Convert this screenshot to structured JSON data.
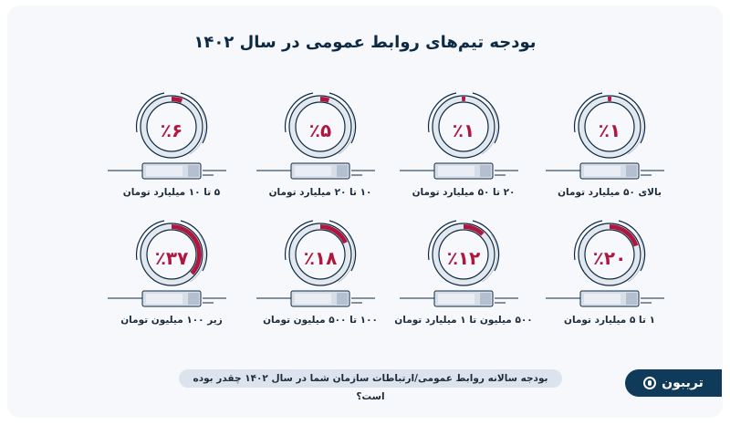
{
  "title": "بودجه تیم‌های روابط عمومی در سال ۱۴۰۲",
  "question": "بودجه سالانه روابط عمومی/ارتباطات سازمان شما در سال ۱۴۰۲ چقدر بوده است؟",
  "logo": {
    "text": "تریبون"
  },
  "colors": {
    "accent": "#b0173f",
    "navy": "#0f3a5a",
    "ring": "#0d2a45",
    "background": "#f7f8fb"
  },
  "items": [
    {
      "label": "بالای ۵۰ میلیارد تومان",
      "pct_label": "٪۱",
      "value": 1
    },
    {
      "label": "۲۰ تا ۵۰ میلیارد تومان",
      "pct_label": "٪۱",
      "value": 1
    },
    {
      "label": "۱۰ تا ۲۰ میلیارد تومان",
      "pct_label": "٪۵",
      "value": 5
    },
    {
      "label": "۵ تا ۱۰ میلیارد تومان",
      "pct_label": "٪۶",
      "value": 6
    },
    {
      "label": "۱ تا ۵ میلیارد تومان",
      "pct_label": "٪۲۰",
      "value": 20
    },
    {
      "label": "۵۰۰ میلیون تا ۱ میلیارد تومان",
      "pct_label": "٪۱۲",
      "value": 12
    },
    {
      "label": "۱۰۰ تا ۵۰۰ میلیون تومان",
      "pct_label": "٪۱۸",
      "value": 18
    },
    {
      "label": "زیر ۱۰۰ میلیون تومان",
      "pct_label": "٪۳۷",
      "value": 37
    }
  ],
  "chart_data": {
    "type": "pie",
    "title": "بودجه تیم‌های روابط عمومی در سال ۱۴۰۲",
    "subtitle": "بودجه سالانه روابط عمومی/ارتباطات سازمان شما در سال ۱۴۰۲ چقدر بوده است؟",
    "categories": [
      "بالای ۵۰ میلیارد تومان",
      "۲۰ تا ۵۰ میلیارد تومان",
      "۱۰ تا ۲۰ میلیارد تومان",
      "۵ تا ۱۰ میلیارد تومان",
      "۱ تا ۵ میلیارد تومان",
      "۵۰۰ میلیون تا ۱ میلیارد تومان",
      "۱۰۰ تا ۵۰۰ میلیون تومان",
      "زیر ۱۰۰ میلیون تومان"
    ],
    "values": [
      1,
      1,
      5,
      6,
      20,
      12,
      18,
      37
    ],
    "unit": "%",
    "xlabel": "",
    "ylabel": ""
  }
}
